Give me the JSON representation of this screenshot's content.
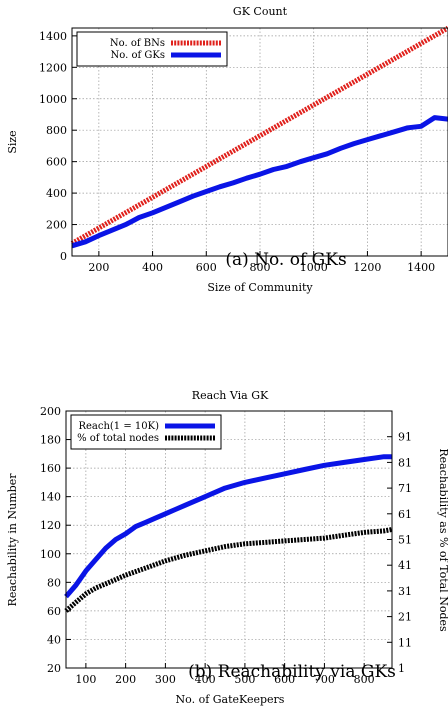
{
  "chart_data": [
    {
      "type": "line",
      "title": "GK Count",
      "xlabel": "Size of Community",
      "ylabel": "Size",
      "caption": "(a) No. of GKs",
      "xlim": [
        100,
        1500
      ],
      "ylim": [
        0,
        1450
      ],
      "xticks": [
        "200",
        "400",
        "600",
        "800",
        "1000",
        "1200",
        "1400"
      ],
      "yticks": [
        "0",
        "200",
        "400",
        "600",
        "800",
        "1000",
        "1200",
        "1400"
      ],
      "grid": true,
      "legend_position": "top-left",
      "series": [
        {
          "name": "No. of BNs",
          "color": "#e0201b",
          "style": "dashed-thick",
          "x": [
            100,
            1500
          ],
          "y": [
            80,
            1450
          ]
        },
        {
          "name": "No. of GKs",
          "color": "#0a14e6",
          "style": "solid-thick",
          "x": [
            100,
            150,
            200,
            250,
            300,
            350,
            400,
            450,
            500,
            550,
            600,
            650,
            700,
            750,
            800,
            850,
            900,
            950,
            1000,
            1050,
            1100,
            1150,
            1200,
            1250,
            1300,
            1350,
            1400,
            1450,
            1500
          ],
          "y": [
            65,
            90,
            130,
            165,
            200,
            245,
            275,
            310,
            345,
            380,
            410,
            440,
            465,
            495,
            520,
            550,
            570,
            600,
            625,
            650,
            685,
            715,
            740,
            765,
            790,
            815,
            825,
            880,
            870
          ]
        }
      ]
    },
    {
      "type": "line",
      "title": "Reach Via GK",
      "xlabel": "No. of GateKeepers",
      "ylabel": "Reachability in Number",
      "y2label": "Reachability as % of Total Nodes",
      "caption": "(b) Reachability via GKs",
      "xlim": [
        50,
        870
      ],
      "ylim": [
        20,
        200
      ],
      "y2lim": [
        1,
        101
      ],
      "xticks": [
        "100",
        "200",
        "300",
        "400",
        "500",
        "600",
        "700",
        "800"
      ],
      "yticks": [
        "20",
        "40",
        "60",
        "80",
        "100",
        "120",
        "140",
        "160",
        "180",
        "200"
      ],
      "y2ticks": [
        "1",
        "11",
        "21",
        "31",
        "41",
        "51",
        "61",
        "71",
        "81",
        "91"
      ],
      "grid": true,
      "legend_position": "top-left",
      "series": [
        {
          "name": "Reach(1 = 10K)",
          "color": "#0a14e6",
          "style": "solid-thick",
          "x": [
            50,
            75,
            100,
            125,
            150,
            175,
            200,
            225,
            250,
            275,
            300,
            325,
            350,
            400,
            450,
            500,
            550,
            600,
            650,
            700,
            750,
            800,
            850,
            870
          ],
          "y": [
            70,
            78,
            88,
            96,
            104,
            110,
            114,
            119,
            122,
            125,
            128,
            131,
            134,
            140,
            146,
            150,
            153,
            156,
            159,
            162,
            164,
            166,
            168,
            168
          ]
        },
        {
          "name": "% of total nodes",
          "color": "#000000",
          "style": "dashed-thick",
          "x": [
            50,
            75,
            100,
            125,
            150,
            200,
            250,
            300,
            350,
            400,
            450,
            500,
            550,
            600,
            650,
            700,
            750,
            800,
            850,
            870
          ],
          "y": [
            60,
            66,
            72,
            76,
            79,
            85,
            90,
            95,
            99,
            102,
            105,
            107,
            108,
            109,
            110,
            111,
            113,
            115,
            116,
            117
          ]
        }
      ]
    }
  ]
}
